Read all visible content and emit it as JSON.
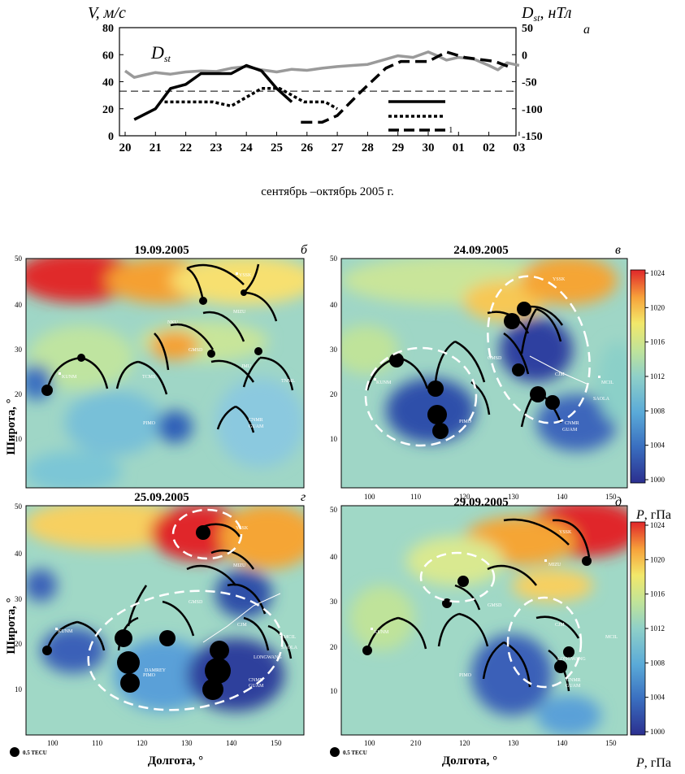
{
  "chart_data": {
    "type": "line",
    "panel_letter": "а",
    "left_axis_label": "V, м/с",
    "right_axis_label": "Dst, нТл",
    "right_axis_label_main": "D",
    "right_axis_label_sub": "st",
    "right_axis_label_unit": ", нТл",
    "inline_label_main": "D",
    "inline_label_sub": "st",
    "xlabel": "сентябрь –октябрь 2005 г.",
    "x_ticks": [
      "20",
      "21",
      "22",
      "23",
      "24",
      "25",
      "26",
      "27",
      "28",
      "29",
      "30",
      "01",
      "02",
      "03"
    ],
    "ylim": [
      0,
      80
    ],
    "y_ticks": [
      "0",
      "20",
      "40",
      "60",
      "80"
    ],
    "y2lim": [
      -150,
      50
    ],
    "y2_ticks": [
      "50",
      "0",
      "-50",
      "-100",
      "-150"
    ],
    "threshold_v": 33,
    "legend_marker": "1",
    "series": [
      {
        "name": "Dst",
        "axis": "right",
        "style": "gray",
        "x": [
          0,
          0.3,
          0.6,
          1,
          1.5,
          2,
          2.5,
          3,
          3.5,
          4,
          4.5,
          5,
          5.5,
          6,
          6.5,
          7,
          7.5,
          8,
          8.5,
          9,
          9.5,
          10,
          10.3,
          10.6,
          11,
          11.5,
          12,
          12.3,
          12.6,
          13
        ],
        "values": [
          -30,
          -42,
          -38,
          -33,
          -36,
          -32,
          -30,
          -31,
          -25,
          -22,
          -28,
          -32,
          -27,
          -29,
          -25,
          -22,
          -20,
          -18,
          -10,
          -2,
          -5,
          5,
          -2,
          -10,
          -5,
          -8,
          -20,
          -28,
          -15,
          -20
        ]
      },
      {
        "name": "V (Kunming)",
        "axis": "left",
        "style": "solid",
        "x": [
          0.3,
          1,
          1.5,
          2,
          2.5,
          3,
          3.5,
          4,
          4.5,
          5,
          5.5
        ],
        "values": [
          12,
          20,
          35,
          38,
          46,
          46,
          46,
          52,
          48,
          35,
          25
        ]
      },
      {
        "name": "V (Guangzhou)",
        "axis": "left",
        "style": "dotted",
        "x": [
          1.3,
          1.8,
          2.4,
          2.9,
          3.5,
          4.5,
          5.1,
          5.9,
          6.6,
          7.0
        ],
        "values": [
          25,
          25,
          25,
          25,
          22,
          35,
          35,
          25,
          25,
          20
        ]
      },
      {
        "name": "V (Guam)",
        "axis": "left",
        "style": "dashed",
        "x": [
          5.8,
          6.5,
          7.0,
          7.8,
          8.6,
          9.1,
          10,
          10.6,
          11.2,
          12.2,
          12.8
        ],
        "values": [
          10,
          10,
          15,
          33,
          50,
          55,
          55,
          62,
          58,
          55,
          50
        ]
      }
    ]
  },
  "maps": [
    {
      "id": "b",
      "title": "19.09.2005",
      "letter": "б",
      "stations": [
        "YSSK",
        "MIZU",
        "GMSD",
        "KUNM",
        "PIMO",
        "CNMR",
        "GUAM",
        "TNML",
        "NKU",
        "JMU",
        "TCMS"
      ]
    },
    {
      "id": "v",
      "title": "24.09.2005",
      "letter": "в",
      "stations": [
        "YSSK",
        "GMSD",
        "KUNM",
        "PIMO",
        "CNMR",
        "GUAM",
        "CJM",
        "MCIL",
        "SAOLA"
      ]
    },
    {
      "id": "g",
      "title": "25.09.2005",
      "letter": "г",
      "stations": [
        "YSSK",
        "MIZU",
        "GMSD",
        "KUNM",
        "PIMO",
        "DAMREY",
        "LONGWANG",
        "CNMR",
        "GUAM",
        "CJM",
        "MCIL",
        "SAOLA"
      ]
    },
    {
      "id": "d",
      "title": "29.09.2005",
      "letter": "д",
      "stations": [
        "YSSK",
        "MIZU",
        "GMSD",
        "KUNM",
        "PIMO",
        "LONGWANG",
        "CNMR",
        "GUAM",
        "CJM",
        "MCIL"
      ]
    }
  ],
  "maps_common": {
    "lat_label": "Широта, °",
    "lon_label": "Долгота, °",
    "lat_ticks": [
      "10",
      "20",
      "30",
      "40",
      "50"
    ],
    "lon_ticks": [
      "100",
      "110",
      "120",
      "130",
      "140",
      "150"
    ],
    "lon_ticks_d": [
      "100",
      "210",
      "120",
      "130",
      "140",
      "150"
    ],
    "scale_label": "0.5 TECU",
    "colorbar_ticks": [
      "1024",
      "1020",
      "1016",
      "1012",
      "1008",
      "1004",
      "1000"
    ],
    "colorbar_label": "P, гПа",
    "colorbar_label_var": "P",
    "colorbar_label_unit": ", гПа"
  }
}
